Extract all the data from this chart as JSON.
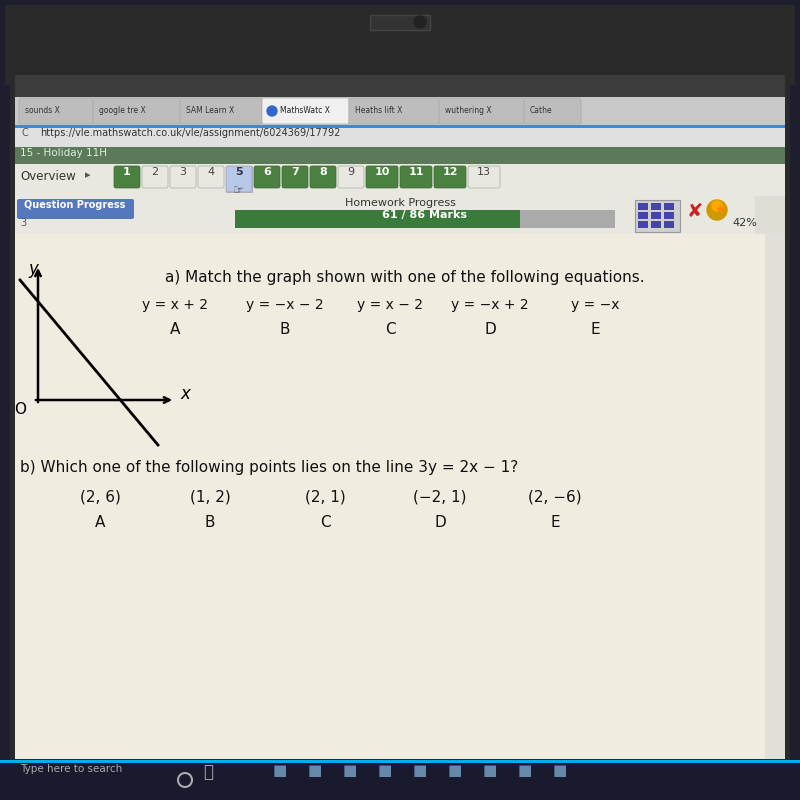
{
  "url": "https://vle.mathswatch.co.uk/vle/assignment/6024369/17792",
  "active_tab": "MathsWatc",
  "homework_text": "Homework Progress",
  "marks_text": "61 / 86 Marks",
  "question_progress_text": "Question Progress",
  "part_a_title": "a) Match the graph shown with one of the following equations.",
  "equations": [
    "y = x + 2",
    "y = −x − 2",
    "y = x − 2",
    "y = −x + 2",
    "y = −x"
  ],
  "labels_a": [
    "A",
    "B",
    "C",
    "D",
    "E"
  ],
  "part_b_title": "b) Which one of the following points lies on the line 3y = 2x − 1?",
  "points": [
    "(2, 6)",
    "(1, 2)",
    "(2, 1)",
    "(−2, 1)",
    "(2, −6)"
  ],
  "labels_b": [
    "A",
    "B",
    "C",
    "D",
    "E"
  ],
  "nav_numbers": [
    "1",
    "2",
    "3",
    "4",
    "5",
    "6",
    "7",
    "8",
    "9",
    "10",
    "11",
    "12",
    "13"
  ],
  "active_nav": "5",
  "green_nav": [
    "1",
    "6",
    "7",
    "8",
    "10",
    "11",
    "12"
  ],
  "percent_text": "42%",
  "outer_bezel_color": "#2a2a2a",
  "screen_bg": "#c8c5bc",
  "title_bar_color": "#3a3a3a",
  "tab_bar_color": "#d0d0d0",
  "active_tab_color": "#f0f0f0",
  "inactive_tab_color": "#bdbdbd",
  "url_bar_color": "#e8e8e8",
  "holiday_bar_color": "#5a7a5a",
  "nav_bar_color": "#e8e8e0",
  "nav_green": "#4a8040",
  "nav_blue_active": "#7090cc",
  "nav_blue_light": "#a0b0d0",
  "content_bg": "#f0ede0",
  "qp_btn_color": "#5577bb",
  "hw_bar_bg": "#aaaaaa",
  "hw_bar_fill": "#3a7a3a",
  "taskbar_color": "#1a1a2e",
  "taskbar_accent": "#00adef"
}
